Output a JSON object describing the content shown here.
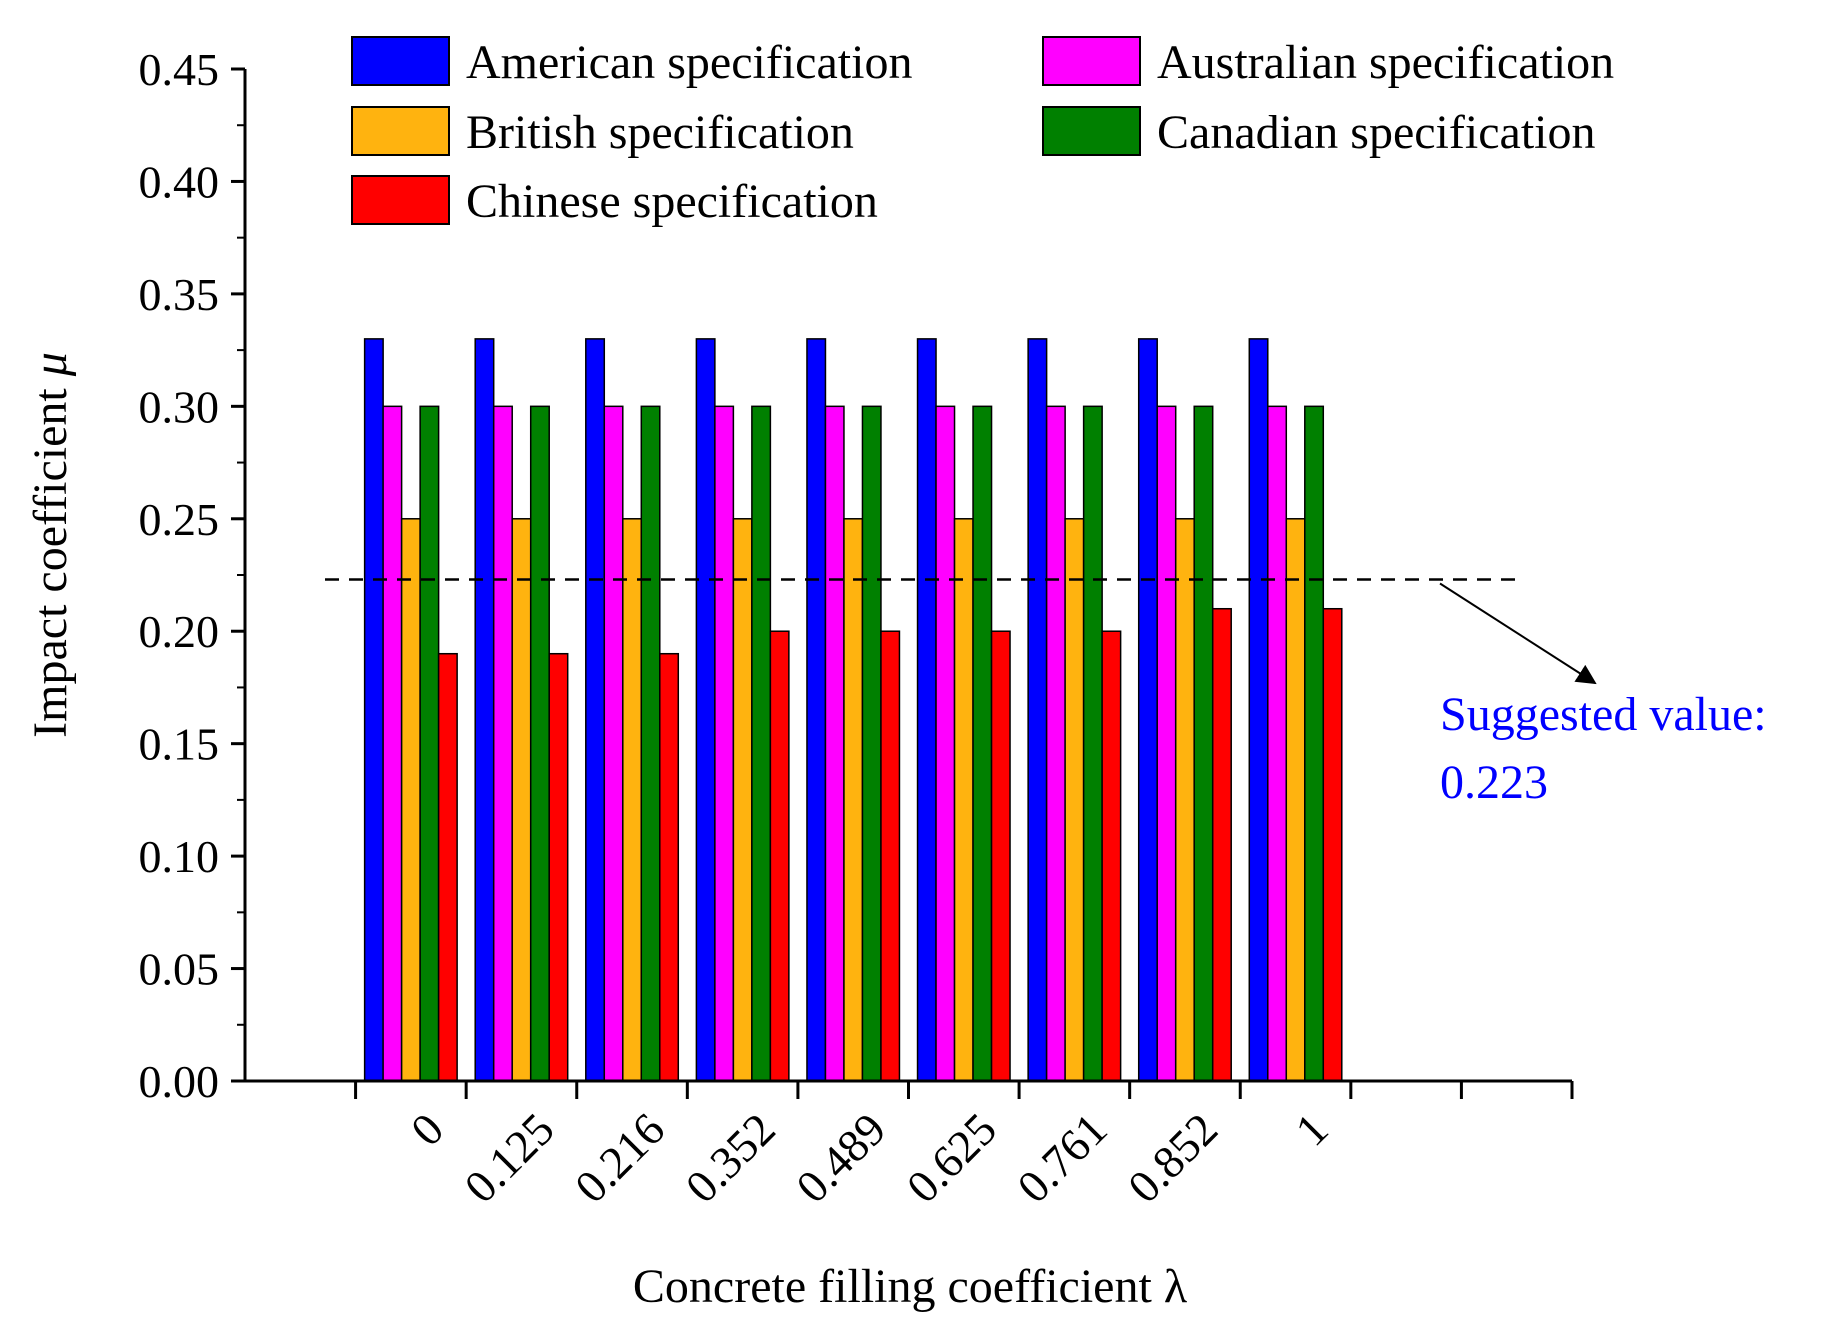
{
  "chart_data": {
    "type": "bar",
    "xlabel": "Concrete filling coefficient  λ",
    "ylabel_text": "Impact coefficient ",
    "ylabel_symbol": "μ",
    "ylim": [
      0,
      0.45
    ],
    "yticks": [
      "0.00",
      "0.05",
      "0.10",
      "0.15",
      "0.20",
      "0.25",
      "0.30",
      "0.35",
      "0.40",
      "0.45"
    ],
    "ytick_values": [
      0,
      0.05,
      0.1,
      0.15,
      0.2,
      0.25,
      0.3,
      0.35,
      0.4,
      0.45
    ],
    "categories": [
      "0",
      "0.125",
      "0.216",
      "0.352",
      "0.489",
      "0.625",
      "0.761",
      "0.852",
      "1"
    ],
    "legend_position": "top",
    "series": [
      {
        "name": "American specification",
        "color": "#0000ff",
        "values": [
          0.33,
          0.33,
          0.33,
          0.33,
          0.33,
          0.33,
          0.33,
          0.33,
          0.33
        ]
      },
      {
        "name": "Australian specification",
        "color": "#ff00ff",
        "values": [
          0.3,
          0.3,
          0.3,
          0.3,
          0.3,
          0.3,
          0.3,
          0.3,
          0.3
        ]
      },
      {
        "name": "British specification",
        "color": "#ffb30f",
        "values": [
          0.25,
          0.25,
          0.25,
          0.25,
          0.25,
          0.25,
          0.25,
          0.25,
          0.25
        ]
      },
      {
        "name": "Canadian specification",
        "color": "#008000",
        "values": [
          0.3,
          0.3,
          0.3,
          0.3,
          0.3,
          0.3,
          0.3,
          0.3,
          0.3
        ]
      },
      {
        "name": "Chinese specification",
        "color": "#ff0000",
        "values": [
          0.19,
          0.19,
          0.19,
          0.2,
          0.2,
          0.2,
          0.2,
          0.21,
          0.21
        ]
      }
    ],
    "reference_line": {
      "value": 0.223,
      "style": "dashed",
      "color": "#000000",
      "label_line1": "Suggested value:",
      "label_line2": "0.223",
      "label_color": "#0000ff"
    }
  }
}
